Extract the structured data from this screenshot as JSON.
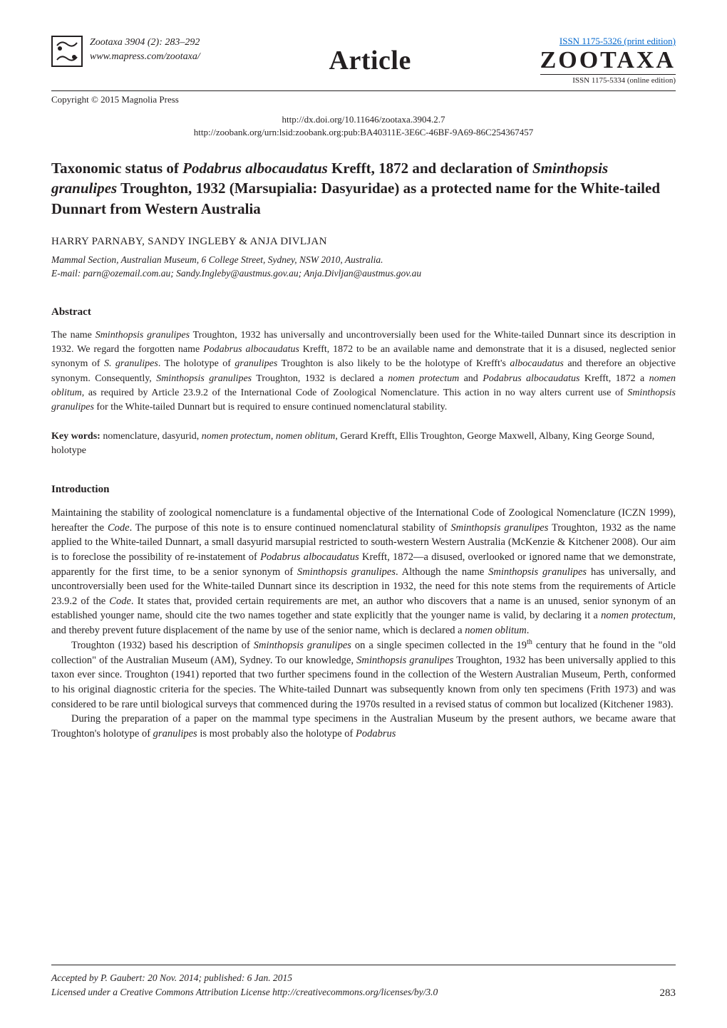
{
  "header": {
    "journal_ref": "Zootaxa 3904 (2): 283–292",
    "journal_url": "www.mapress.com/zootaxa/",
    "copyright": "Copyright © 2015 Magnolia Press",
    "article_label": "Article",
    "issn_print": "ISSN 1175-5326  (print edition)",
    "zootaxa_logo": "ZOOTAXA",
    "issn_online": "ISSN 1175-5334 (online edition)",
    "doi": "http://dx.doi.org/10.11646/zootaxa.3904.2.7",
    "zoobank": "http://zoobank.org/urn:lsid:zoobank.org:pub:BA40311E-3E6C-46BF-9A69-86C254367457"
  },
  "title": {
    "line1_pre": "Taxonomic status of ",
    "line1_italic": "Podabrus albocaudatus",
    "line1_post": " Krefft, 1872 and declaration of ",
    "line2_italic": "Sminthopsis granulipes",
    "line2_post": " Troughton, 1932 (Marsupialia: Dasyuridae) as a protected name for the White-tailed Dunnart from Western Australia"
  },
  "authors": "HARRY PARNABY, SANDY INGLEBY & ANJA DIVLJAN",
  "affiliation": {
    "line1": "Mammal Section, Australian Museum, 6 College Street, Sydney, NSW 2010, Australia.",
    "line2": "E-mail: parn@ozemail.com.au; Sandy.Ingleby@austmus.gov.au; Anja.Divljan@austmus.gov.au"
  },
  "abstract_heading": "Abstract",
  "abstract_text_parts": [
    {
      "text": "The name ",
      "style": "normal"
    },
    {
      "text": "Sminthopsis granulipes",
      "style": "italic"
    },
    {
      "text": " Troughton, 1932 has universally and uncontroversially been used for the White-tailed Dunnart since its description in 1932. We regard the forgotten name ",
      "style": "normal"
    },
    {
      "text": "Podabrus albocaudatus",
      "style": "italic"
    },
    {
      "text": " Krefft, 1872 to be an available name and demonstrate that it is a disused, neglected senior synonym of ",
      "style": "normal"
    },
    {
      "text": "S. granulipes",
      "style": "italic"
    },
    {
      "text": ". The holotype of ",
      "style": "normal"
    },
    {
      "text": "granulipes",
      "style": "italic"
    },
    {
      "text": " Troughton is also likely to be the holotype of Krefft's ",
      "style": "normal"
    },
    {
      "text": "albocaudatus",
      "style": "italic"
    },
    {
      "text": " and therefore an objective synonym. Consequently, ",
      "style": "normal"
    },
    {
      "text": "Sminthopsis granulipes",
      "style": "italic"
    },
    {
      "text": " Troughton, 1932 is declared a ",
      "style": "normal"
    },
    {
      "text": "nomen protectum",
      "style": "italic"
    },
    {
      "text": " and ",
      "style": "normal"
    },
    {
      "text": "Podabrus albocaudatus",
      "style": "italic"
    },
    {
      "text": " Krefft, 1872 a ",
      "style": "normal"
    },
    {
      "text": "nomen oblitum",
      "style": "italic"
    },
    {
      "text": ", as required by Article 23.9.2 of the International Code of Zoological Nomenclature. This action in no way alters current use of ",
      "style": "normal"
    },
    {
      "text": "Sminthopsis granulipes",
      "style": "italic"
    },
    {
      "text": " for the White-tailed Dunnart but is required to ensure continued nomenclatural stability.",
      "style": "normal"
    }
  ],
  "keywords_label": "Key words:",
  "keywords_parts": [
    {
      "text": " nomenclature, dasyurid, ",
      "style": "normal"
    },
    {
      "text": "nomen protectum",
      "style": "italic"
    },
    {
      "text": ", ",
      "style": "normal"
    },
    {
      "text": "nomen oblitum",
      "style": "italic"
    },
    {
      "text": ", Gerard Krefft, Ellis Troughton, George Maxwell, Albany, King George Sound, holotype",
      "style": "normal"
    }
  ],
  "intro_heading": "Introduction",
  "intro_para1_parts": [
    {
      "text": "Maintaining the stability of zoological nomenclature is a fundamental objective of the International Code of Zoological Nomenclature (ICZN 1999), hereafter the ",
      "style": "normal"
    },
    {
      "text": "Code",
      "style": "italic"
    },
    {
      "text": ". The purpose of this note is to ensure continued nomenclatural stability of ",
      "style": "normal"
    },
    {
      "text": "Sminthopsis granulipes",
      "style": "italic"
    },
    {
      "text": " Troughton, 1932 as the name applied to the White-tailed Dunnart, a small dasyurid marsupial restricted to south-western Western Australia (McKenzie & Kitchener 2008). Our aim is to foreclose the possibility of re-instatement of ",
      "style": "normal"
    },
    {
      "text": "Podabrus albocaudatus",
      "style": "italic"
    },
    {
      "text": " Krefft, 1872—a disused, overlooked or ignored name that we demonstrate, apparently for the first time, to be a senior synonym of ",
      "style": "normal"
    },
    {
      "text": "Sminthopsis granulipes",
      "style": "italic"
    },
    {
      "text": ". Although the name ",
      "style": "normal"
    },
    {
      "text": "Sminthopsis granulipes",
      "style": "italic"
    },
    {
      "text": " has universally, and uncontroversially been used for the White-tailed Dunnart since its description in 1932, the need for this note stems from the requirements of Article 23.9.2 of the ",
      "style": "normal"
    },
    {
      "text": "Code",
      "style": "italic"
    },
    {
      "text": ". It states that, provided certain requirements are met, an author who discovers that a name is an unused, senior synonym of an established younger name, should cite the two names together and state explicitly that the younger name is valid, by declaring it a ",
      "style": "normal"
    },
    {
      "text": "nomen protectum",
      "style": "italic"
    },
    {
      "text": ", and thereby prevent future displacement of the name by use of the senior name, which is declared a ",
      "style": "normal"
    },
    {
      "text": "nomen oblitum",
      "style": "italic"
    },
    {
      "text": ".",
      "style": "normal"
    }
  ],
  "intro_para2_parts": [
    {
      "text": "Troughton (1932) based his description of ",
      "style": "normal"
    },
    {
      "text": "Sminthopsis granulipes",
      "style": "italic"
    },
    {
      "text": " on a single specimen collected in the 19",
      "style": "normal"
    },
    {
      "text": "th",
      "style": "sup"
    },
    {
      "text": " century that he found in the \"old collection\" of the Australian Museum (AM), Sydney. To our knowledge, ",
      "style": "normal"
    },
    {
      "text": "Sminthopsis granulipes",
      "style": "italic"
    },
    {
      "text": " Troughton, 1932 has been universally applied to this taxon ever since. Troughton (1941) reported that two further specimens found in the collection of the Western Australian Museum, Perth, conformed to his original diagnostic criteria for the species. The White-tailed Dunnart was subsequently known from only ten specimens (Frith 1973) and was considered to be rare until biological surveys that commenced during the 1970s resulted in a revised status of common but localized (Kitchener 1983).",
      "style": "normal"
    }
  ],
  "intro_para3_parts": [
    {
      "text": "During the preparation of a paper on the mammal type specimens in the Australian Museum by the present authors, we became aware that Troughton's holotype of ",
      "style": "normal"
    },
    {
      "text": "granulipes",
      "style": "italic"
    },
    {
      "text": " is most probably also the holotype of ",
      "style": "normal"
    },
    {
      "text": "Podabrus",
      "style": "italic"
    }
  ],
  "footer": {
    "accepted": "Accepted by P. Gaubert: 20 Nov. 2014; published: 6 Jan. 2015",
    "license": "Licensed under a Creative Commons Attribution License http://creativecommons.org/licenses/by/3.0",
    "page_number": "283"
  },
  "colors": {
    "text": "#231f20",
    "link_blue": "#0066cc",
    "background": "#ffffff",
    "rule": "#231f20"
  },
  "fonts": {
    "body_family": "Times New Roman, Times, serif",
    "title_size_pt": 16,
    "body_size_pt": 11,
    "abstract_size_pt": 10.5,
    "article_label_size_pt": 28,
    "zootaxa_logo_size_pt": 26
  }
}
